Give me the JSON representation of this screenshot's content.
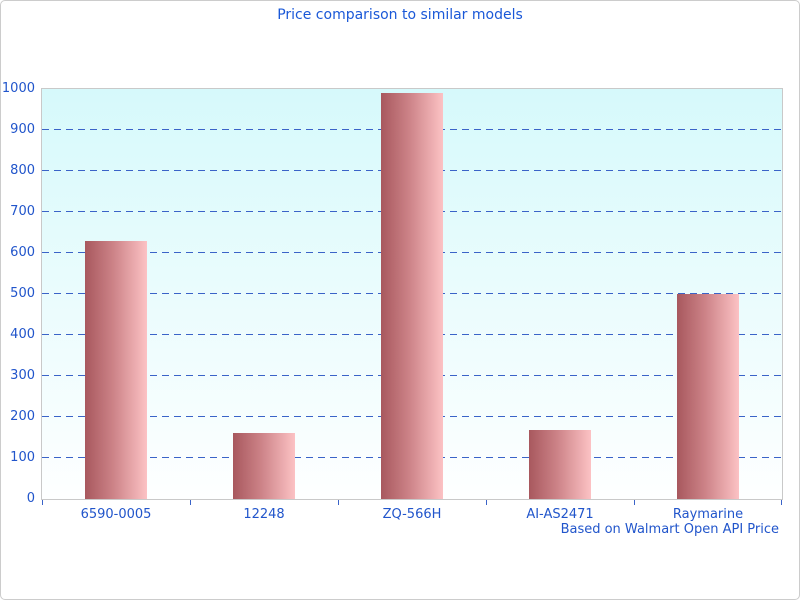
{
  "window": {
    "background": "#ffffff",
    "border_color": "#cccccc"
  },
  "chart_data": {
    "type": "bar",
    "title": "Price comparison to similar models",
    "footer": "Based on Walmart Open API Price",
    "categories": [
      "6590-0005",
      "12248",
      "ZQ-566H",
      "AI-AS2471",
      "Raymarine"
    ],
    "values": [
      629,
      162,
      990,
      169,
      499
    ],
    "xlabel": "",
    "ylabel": "",
    "ylim": [
      0,
      1000
    ],
    "ytick_step": 100,
    "grid": "horizontal-dashed",
    "legend": "none",
    "colors": {
      "title_text": "#1a58d8",
      "axis_text": "#2155cb",
      "gridline": "#3a63c8",
      "bar_gradient_left": "#a8585e",
      "bar_gradient_mid": "#cc8287",
      "bar_gradient_right": "#fcc2c4",
      "plot_bg_top": "#d6f9fb",
      "plot_bg_bottom": "#feffff",
      "plot_border": "#c9c9c9"
    }
  }
}
